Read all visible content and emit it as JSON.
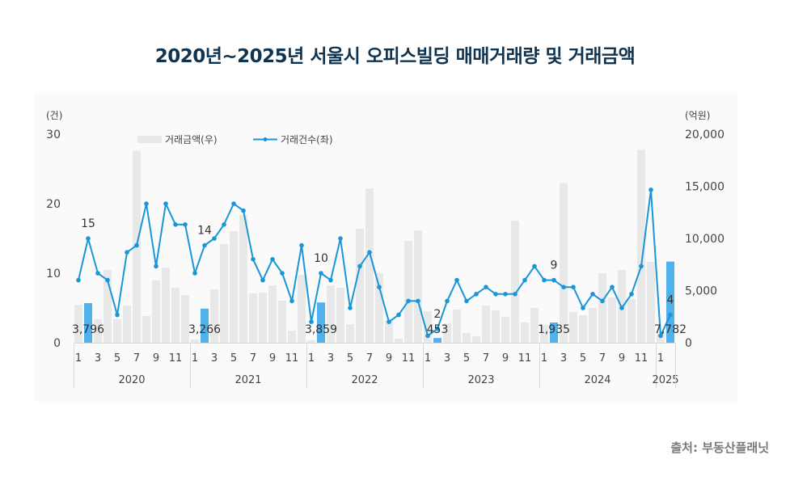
{
  "title": "2020년~2025년 서울시 오피스빌딩 매매거래량 및 거래금액",
  "source": "출처: 부동산플래닛",
  "colors": {
    "title": "#10344f",
    "line": "#1a96d8",
    "bar": "#e8e8e8",
    "bar_highlight": "#4fb1ee",
    "axis_text": "#444444",
    "grid_box": "#d9d9d9",
    "panel": "#fafafa"
  },
  "chart_data": {
    "type": "bar+line",
    "title": "2020년~2025년 서울시 오피스빌딩 매매거래량 및 거래금액",
    "left_axis": {
      "unit_label": "(건)",
      "ylim": [
        0,
        30
      ],
      "ticks": [
        0,
        10,
        20,
        30
      ]
    },
    "right_axis": {
      "unit_label": "(억원)",
      "ylim": [
        0,
        20000
      ],
      "ticks": [
        "0",
        "5,000",
        "10,000",
        "15,000",
        "20,000"
      ]
    },
    "legend": [
      {
        "name": "거래금액(우)",
        "type": "bar"
      },
      {
        "name": "거래건수(좌)",
        "type": "line"
      }
    ],
    "legend_position": "top",
    "grid": false,
    "years": [
      {
        "label": "2020",
        "months": 12
      },
      {
        "label": "2021",
        "months": 12
      },
      {
        "label": "2022",
        "months": 12
      },
      {
        "label": "2023",
        "months": 12
      },
      {
        "label": "2024",
        "months": 12
      },
      {
        "label": "2025",
        "months": 2
      }
    ],
    "month_tick_labels": [
      "1",
      "3",
      "5",
      "7",
      "9",
      "11"
    ],
    "x": [
      "2020-01",
      "2020-02",
      "2020-03",
      "2020-04",
      "2020-05",
      "2020-06",
      "2020-07",
      "2020-08",
      "2020-09",
      "2020-10",
      "2020-11",
      "2020-12",
      "2021-01",
      "2021-02",
      "2021-03",
      "2021-04",
      "2021-05",
      "2021-06",
      "2021-07",
      "2021-08",
      "2021-09",
      "2021-10",
      "2021-11",
      "2021-12",
      "2022-01",
      "2022-02",
      "2022-03",
      "2022-04",
      "2022-05",
      "2022-06",
      "2022-07",
      "2022-08",
      "2022-09",
      "2022-10",
      "2022-11",
      "2022-12",
      "2023-01",
      "2023-02",
      "2023-03",
      "2023-04",
      "2023-05",
      "2023-06",
      "2023-07",
      "2023-08",
      "2023-09",
      "2023-10",
      "2023-11",
      "2023-12",
      "2024-01",
      "2024-02",
      "2024-03",
      "2024-04",
      "2024-05",
      "2024-06",
      "2024-07",
      "2024-08",
      "2024-09",
      "2024-10",
      "2024-11",
      "2024-12",
      "2025-01",
      "2025-02"
    ],
    "series": [
      {
        "name": "거래금액(우)",
        "axis": "right",
        "type": "bar",
        "values": [
          3640,
          3796,
          2250,
          7000,
          2250,
          3570,
          18400,
          2560,
          5970,
          7200,
          5270,
          4570,
          300,
          3266,
          5100,
          9450,
          10700,
          12250,
          4730,
          4800,
          5500,
          4030,
          1160,
          6500,
          250,
          3859,
          5500,
          5270,
          1780,
          10930,
          14800,
          6670,
          2170,
          390,
          9770,
          10770,
          3020,
          453,
          1860,
          3180,
          930,
          620,
          3570,
          3100,
          2480,
          11700,
          1940,
          3330,
          1700,
          1935,
          15300,
          2950,
          2640,
          3330,
          6670,
          4330,
          6970,
          4200,
          18500,
          7750,
          1000,
          7782
        ]
      },
      {
        "name": "거래건수(좌)",
        "axis": "left",
        "type": "line",
        "values": [
          9,
          15,
          10,
          9,
          4,
          13,
          14,
          20,
          11,
          20,
          17,
          17,
          10,
          14,
          15,
          17,
          20,
          19,
          12,
          9,
          12,
          10,
          6,
          14,
          3,
          10,
          9,
          15,
          5,
          11,
          13,
          8,
          3,
          4,
          6,
          6,
          1,
          2,
          6,
          9,
          6,
          7,
          8,
          7,
          7,
          7,
          9,
          11,
          9,
          9,
          8,
          8,
          5,
          7,
          6,
          8,
          5,
          7,
          11,
          22,
          1,
          4
        ]
      }
    ],
    "highlighted_months": [
      {
        "x": "2020-02",
        "amount_label": "3,796",
        "count_label": "15"
      },
      {
        "x": "2021-02",
        "amount_label": "3,266",
        "count_label": "14"
      },
      {
        "x": "2022-02",
        "amount_label": "3,859",
        "count_label": "10"
      },
      {
        "x": "2023-02",
        "amount_label": "453",
        "count_label": "2"
      },
      {
        "x": "2024-02",
        "amount_label": "1,935",
        "count_label": "9"
      },
      {
        "x": "2025-02",
        "amount_label": "7,782",
        "count_label": "4"
      }
    ]
  }
}
